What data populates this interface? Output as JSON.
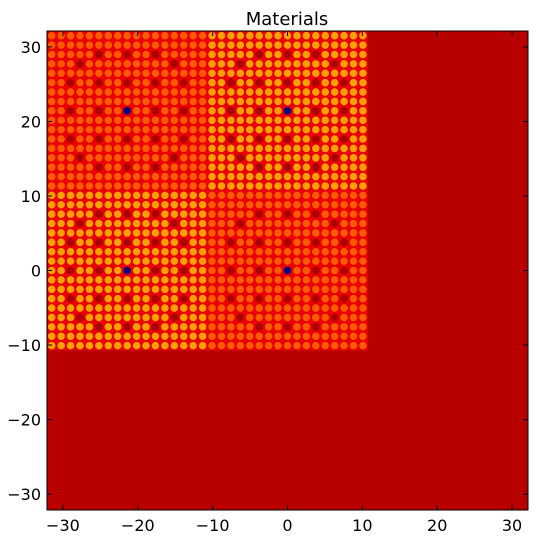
{
  "chart_data": {
    "type": "heatmap",
    "title": "Materials",
    "xlabel": "",
    "ylabel": "",
    "xlim": [
      -32.13,
      32.13
    ],
    "ylim": [
      -32.13,
      32.13
    ],
    "x_ticks": [
      -30,
      -20,
      -10,
      0,
      10,
      20,
      30
    ],
    "y_ticks": [
      -30,
      -20,
      -10,
      0,
      10,
      20,
      30
    ],
    "x_tick_labels": [
      "−30",
      "−20",
      "−10",
      "0",
      "10",
      "20",
      "30"
    ],
    "y_tick_labels": [
      "−30",
      "−20",
      "−10",
      "0",
      "10",
      "20",
      "30"
    ],
    "grid": false,
    "pin_pitch": 1.26,
    "lattice_pins_per_side": 17,
    "colors": {
      "moderator": "#b80000",
      "lattice_background": "#e80000",
      "fuel_low": "#ff5a00",
      "fuel_high": "#ffa000",
      "guide_tube": "#a80000",
      "instrument_tube": "#000080"
    },
    "assemblies": [
      {
        "name": "top-left",
        "center": [
          -21.42,
          21.42
        ],
        "enrichment": "low",
        "instrument_tube": [
          -21.42,
          21.42
        ]
      },
      {
        "name": "top-right",
        "center": [
          0,
          21.42
        ],
        "enrichment": "high",
        "instrument_tube": [
          0,
          21.42
        ]
      },
      {
        "name": "bottom-left",
        "center": [
          -21.42,
          0
        ],
        "enrichment": "high",
        "instrument_tube": [
          -21.42,
          0
        ]
      },
      {
        "name": "bottom-right",
        "center": [
          0,
          0
        ],
        "enrichment": "low",
        "instrument_tube": [
          0,
          0
        ]
      }
    ],
    "guide_tube_positions": [
      [
        2,
        5
      ],
      [
        2,
        8
      ],
      [
        2,
        11
      ],
      [
        3,
        3
      ],
      [
        3,
        13
      ],
      [
        5,
        2
      ],
      [
        5,
        5
      ],
      [
        5,
        8
      ],
      [
        5,
        11
      ],
      [
        5,
        14
      ],
      [
        8,
        2
      ],
      [
        8,
        5
      ],
      [
        8,
        11
      ],
      [
        8,
        14
      ],
      [
        11,
        2
      ],
      [
        11,
        5
      ],
      [
        11,
        8
      ],
      [
        11,
        11
      ],
      [
        11,
        14
      ],
      [
        13,
        3
      ],
      [
        13,
        13
      ],
      [
        14,
        5
      ],
      [
        14,
        8
      ],
      [
        14,
        11
      ]
    ]
  }
}
